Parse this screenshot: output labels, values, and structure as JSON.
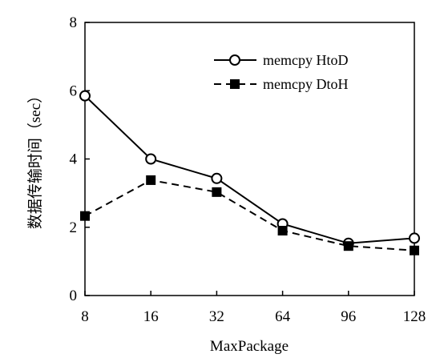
{
  "chart_data": {
    "type": "line",
    "categories": [
      "8",
      "16",
      "32",
      "64",
      "96",
      "128"
    ],
    "series": [
      {
        "name": "memcpy HtoD",
        "values": [
          5.85,
          4.0,
          3.43,
          2.1,
          1.53,
          1.68
        ],
        "marker": "open-circle",
        "line": "solid",
        "color": "#000000"
      },
      {
        "name": "memcpy DtoH",
        "values": [
          2.33,
          3.38,
          3.03,
          1.9,
          1.45,
          1.32
        ],
        "marker": "filled-square",
        "line": "dashed",
        "color": "#000000"
      }
    ],
    "title": "",
    "xlabel": "MaxPackage",
    "ylabel": "数据传输时间（sec）",
    "ylim": [
      0,
      8
    ],
    "yticks": [
      "0",
      "2",
      "4",
      "6",
      "8"
    ],
    "grid": false,
    "legend_position": "top-right"
  }
}
